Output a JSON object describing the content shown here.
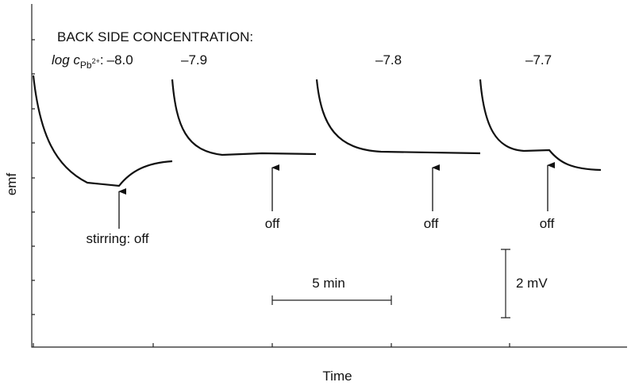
{
  "chart_data": {
    "type": "line",
    "title": "BACK SIDE CONCENTRATION:",
    "level_label": {
      "text": "log c",
      "subscript": "Pb",
      "superscript": "2+",
      "separator": ":"
    },
    "levels": [
      "–8.0",
      "–7.9",
      "–7.8",
      "–7.7"
    ],
    "annotations": [
      "stirring: off",
      "off",
      "off",
      "off"
    ],
    "time_scale": "5 min",
    "emf_scale": "2 mV",
    "x_label": "Time",
    "y_label": "emf"
  }
}
